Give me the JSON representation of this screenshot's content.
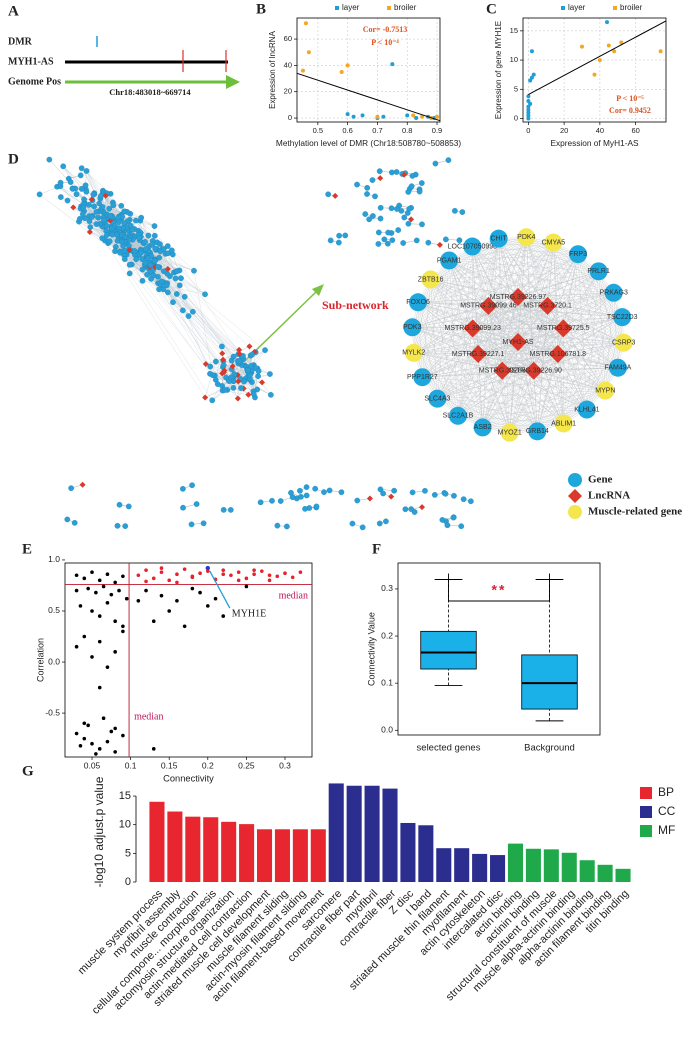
{
  "panel_labels": [
    "A",
    "B",
    "C",
    "D",
    "E",
    "F",
    "G"
  ],
  "gene_track": {
    "tracks": [
      "DMR",
      "MYH1-AS",
      "Genome Pos"
    ],
    "region": "Chr18:483018~669714"
  },
  "network": {
    "subnetwork_label": "Sub-network",
    "legend": [
      {
        "label": "Gene",
        "kind": "gene",
        "color": "#1ea7dd"
      },
      {
        "label": "LncRNA",
        "kind": "lncrna",
        "color": "#d93a2b"
      },
      {
        "label": "Muscle-related gene",
        "kind": "muscle",
        "color": "#f4e64c"
      }
    ],
    "outer_nodes": [
      {
        "label": "PDK4",
        "kind": "muscle"
      },
      {
        "label": "CMYA5",
        "kind": "muscle"
      },
      {
        "label": "FRP3",
        "kind": "gene"
      },
      {
        "label": "PRLR1",
        "kind": "gene"
      },
      {
        "label": "PRKAG3",
        "kind": "gene"
      },
      {
        "label": "TSC22D3",
        "kind": "gene"
      },
      {
        "label": "CSRP3",
        "kind": "muscle"
      },
      {
        "label": "FAM49A",
        "kind": "gene"
      },
      {
        "label": "MYPN",
        "kind": "muscle"
      },
      {
        "label": "KLHL41",
        "kind": "gene"
      },
      {
        "label": "ABLIM1",
        "kind": "muscle"
      },
      {
        "label": "GRB14",
        "kind": "gene"
      },
      {
        "label": "MYOZ1",
        "kind": "muscle"
      },
      {
        "label": "ASB2",
        "kind": "gene"
      },
      {
        "label": "SLC2A1B",
        "kind": "gene"
      },
      {
        "label": "SLC4A3",
        "kind": "gene"
      },
      {
        "label": "PPP1R27",
        "kind": "gene"
      },
      {
        "label": "MYLK2",
        "kind": "muscle"
      },
      {
        "label": "PDK3",
        "kind": "gene"
      },
      {
        "label": "FOXO6",
        "kind": "gene"
      },
      {
        "label": "ZBTB16",
        "kind": "muscle"
      },
      {
        "label": "PGAM1",
        "kind": "gene"
      },
      {
        "label": "LOC107050990",
        "kind": "gene"
      },
      {
        "label": "CHIT",
        "kind": "gene"
      }
    ],
    "inner_nodes": [
      {
        "label": "MYH1-AS",
        "kind": "lncrna"
      },
      {
        "label": "MSTRG.39226.97",
        "kind": "lncrna"
      },
      {
        "label": "MSTRG.3720.1",
        "kind": "lncrna"
      },
      {
        "label": "MSTRG.39725.5",
        "kind": "lncrna"
      },
      {
        "label": "MSTRG.106781.8",
        "kind": "lncrna"
      },
      {
        "label": "MSTRG.39226.90",
        "kind": "lncrna"
      },
      {
        "label": "MSTRG.39285",
        "kind": "lncrna"
      },
      {
        "label": "MSTRG.39227.1",
        "kind": "lncrna"
      },
      {
        "label": "MSTRG.39099.23",
        "kind": "lncrna"
      },
      {
        "label": "MSTRG.39099.46",
        "kind": "lncrna"
      }
    ]
  },
  "chart_data": [
    {
      "type": "scatter",
      "x_label": "Methylation level of DMR (Chr18:508780~508853)",
      "y_label": "Expression of lncRNA",
      "annotations": [
        "Cor= -0.7513",
        "P < 10⁻⁴"
      ],
      "legend": "top",
      "grid": true,
      "series": [
        {
          "name": "layer",
          "color": "#1f9fd8",
          "x": [
            0.75,
            0.6,
            0.62,
            0.65,
            0.7,
            0.72,
            0.8,
            0.83,
            0.87,
            0.89
          ],
          "values": [
            41,
            3,
            1,
            2,
            0,
            1,
            2,
            0,
            1,
            0
          ]
        },
        {
          "name": "broiler",
          "color": "#f5a623",
          "x": [
            0.46,
            0.47,
            0.45,
            0.6,
            0.58,
            0.82,
            0.85,
            0.88,
            0.9,
            0.7
          ],
          "values": [
            72,
            50,
            36,
            40,
            35,
            2,
            1,
            0,
            1,
            1
          ]
        }
      ],
      "fit": {
        "x": [
          0.43,
          0.91
        ],
        "values": [
          34,
          -2
        ]
      },
      "xlim": [
        0.43,
        0.91
      ],
      "ylim": [
        -3,
        76
      ],
      "xticks": [
        0.5,
        0.6,
        0.7,
        0.8,
        0.9
      ],
      "yticks": [
        0,
        20,
        40,
        60
      ]
    },
    {
      "type": "scatter",
      "x_label": "Expression of MyH1-AS",
      "y_label": "Expression of gene MYH1E",
      "annotations": [
        "P < 10⁻⁵",
        "Cor= 0.9452"
      ],
      "legend": "top",
      "grid": true,
      "series": [
        {
          "name": "layer",
          "color": "#1f9fd8",
          "x": [
            0,
            0,
            0,
            0,
            0,
            1,
            0,
            2,
            3,
            1,
            2,
            44,
            0
          ],
          "values": [
            0,
            0.5,
            1,
            1.5,
            2,
            2.5,
            3,
            7,
            7.5,
            6.5,
            11.5,
            16.5,
            3.8
          ]
        },
        {
          "name": "broiler",
          "color": "#f5a623",
          "x": [
            37,
            40,
            45,
            48,
            74,
            30,
            52
          ],
          "values": [
            7.5,
            10,
            12.5,
            11.5,
            11.5,
            12.3,
            13
          ]
        }
      ],
      "fit": {
        "x": [
          0,
          77
        ],
        "values": [
          4.1,
          16.7
        ]
      },
      "xlim": [
        -3,
        77
      ],
      "ylim": [
        -0.6,
        17.2
      ],
      "xticks": [
        0,
        20,
        40,
        60
      ],
      "yticks": [
        0,
        5,
        10,
        15
      ]
    },
    {
      "type": "scatter",
      "x_label": "Connectivity",
      "y_label": "Correlation",
      "median": {
        "x": 0.098,
        "y": 0.76,
        "label": "median"
      },
      "annotation": {
        "text": "MYH1E",
        "x": 0.2,
        "y": 0.92
      },
      "series": [
        {
          "color": "#000000",
          "x": [
            0.03,
            0.04,
            0.05,
            0.06,
            0.07,
            0.08,
            0.09,
            0.03,
            0.045,
            0.055,
            0.065,
            0.075,
            0.085,
            0.095,
            0.035,
            0.05,
            0.06,
            0.07,
            0.08,
            0.09,
            0.04,
            0.06,
            0.08,
            0.03,
            0.05,
            0.07,
            0.09,
            0.06,
            0.04,
            0.08,
            0.03,
            0.04,
            0.05,
            0.06,
            0.07,
            0.08,
            0.09,
            0.035,
            0.055,
            0.075,
            0.045,
            0.065,
            0.12,
            0.14,
            0.16,
            0.18,
            0.2,
            0.22,
            0.15,
            0.19,
            0.13,
            0.25,
            0.17,
            0.21,
            0.11,
            0.13
          ],
          "values": [
            0.85,
            0.82,
            0.88,
            0.8,
            0.86,
            0.78,
            0.84,
            0.7,
            0.72,
            0.68,
            0.74,
            0.66,
            0.7,
            0.62,
            0.55,
            0.5,
            0.45,
            0.58,
            0.4,
            0.35,
            0.25,
            0.2,
            0.1,
            0.15,
            0.05,
            -0.05,
            0.3,
            -0.25,
            -0.6,
            -0.65,
            -0.7,
            -0.75,
            -0.8,
            -0.85,
            -0.78,
            -0.88,
            -0.72,
            -0.82,
            -0.9,
            -0.68,
            -0.62,
            -0.55,
            0.7,
            0.65,
            0.6,
            0.72,
            0.55,
            0.45,
            0.5,
            0.68,
            0.4,
            0.74,
            0.35,
            0.62,
            0.6,
            -0.85
          ]
        },
        {
          "color": "#e8212c",
          "x": [
            0.11,
            0.12,
            0.13,
            0.14,
            0.15,
            0.16,
            0.17,
            0.18,
            0.19,
            0.2,
            0.21,
            0.22,
            0.23,
            0.24,
            0.25,
            0.26,
            0.27,
            0.28,
            0.29,
            0.3,
            0.31,
            0.12,
            0.14,
            0.16,
            0.18,
            0.22,
            0.24,
            0.26,
            0.28,
            0.32
          ],
          "values": [
            0.85,
            0.9,
            0.82,
            0.88,
            0.8,
            0.86,
            0.91,
            0.83,
            0.87,
            0.89,
            0.81,
            0.9,
            0.85,
            0.88,
            0.82,
            0.86,
            0.89,
            0.8,
            0.84,
            0.87,
            0.83,
            0.79,
            0.92,
            0.78,
            0.84,
            0.86,
            0.8,
            0.9,
            0.85,
            0.88
          ]
        }
      ],
      "xlim": [
        0.015,
        0.335
      ],
      "ylim": [
        -0.93,
        0.97
      ],
      "xticks": [
        0.05,
        0.1,
        0.15,
        0.2,
        0.25,
        0.3
      ],
      "yticks": [
        {
          "value": -0.5,
          "label": "-0.5"
        },
        {
          "value": 0,
          "label": "0.0"
        },
        0.5,
        {
          "value": 1,
          "label": "1.0"
        }
      ]
    },
    {
      "type": "box",
      "y_label": "Connectivity Value",
      "categories": [
        "selected genes",
        "Background"
      ],
      "color": "#1ab0e8",
      "min": [
        0.095,
        0.02
      ],
      "q1": [
        0.13,
        0.045
      ],
      "median": [
        0.165,
        0.1
      ],
      "q3": [
        0.21,
        0.16
      ],
      "max": [
        0.32,
        0.32
      ],
      "significance": "**",
      "ylim": [
        -0.01,
        0.355
      ],
      "yticks": [
        {
          "value": 0,
          "label": "0.0"
        },
        0.1,
        0.2,
        0.3
      ]
    },
    {
      "type": "bar",
      "y_label": "-log10 adjust.p value",
      "legend": "right",
      "categories": [
        "muscle system process",
        "myofibril assembly",
        "muscle contraction",
        "cellular compone... morphogenesis",
        "actomyosin structure organization",
        "actin-mediated cell contraction",
        "striated muscle cell development",
        "muscle filament sliding",
        "actin-myosin filament sliding",
        "actin filament-based movement",
        "sarcomere",
        "contractile fiber part",
        "myofibril",
        "contractile fiber",
        "Z disc",
        "I band",
        "striated muscle thin filament",
        "myofilament",
        "actin cytoskeleton",
        "intercalated disc",
        "actin binding",
        "actinin binding",
        "structural constituent of muscle",
        "muscle alpha-actinin binding",
        "alpha-actinin binding",
        "actin filament binding",
        "titin binding"
      ],
      "series": [
        {
          "name": "BP",
          "color": "#e8262f",
          "values": [
            14,
            12.3,
            11.4,
            11.3,
            10.5,
            10.1,
            9.2,
            9.2,
            9.2,
            9.2,
            null,
            null,
            null,
            null,
            null,
            null,
            null,
            null,
            null,
            null,
            null,
            null,
            null,
            null,
            null,
            null,
            null
          ]
        },
        {
          "name": "CC",
          "color": "#2b2e8f",
          "values": [
            null,
            null,
            null,
            null,
            null,
            null,
            null,
            null,
            null,
            null,
            17.2,
            16.8,
            16.8,
            16.3,
            10.3,
            9.9,
            5.9,
            5.9,
            4.9,
            4.7,
            null,
            null,
            null,
            null,
            null,
            null,
            null
          ]
        },
        {
          "name": "MF",
          "color": "#20a94b",
          "values": [
            null,
            null,
            null,
            null,
            null,
            null,
            null,
            null,
            null,
            null,
            null,
            null,
            null,
            null,
            null,
            null,
            null,
            null,
            null,
            null,
            6.7,
            5.8,
            5.7,
            5.1,
            3.8,
            3,
            2.3
          ]
        }
      ],
      "ylim": [
        0,
        17.8
      ],
      "yticks": [
        0,
        5,
        10,
        15
      ]
    }
  ]
}
